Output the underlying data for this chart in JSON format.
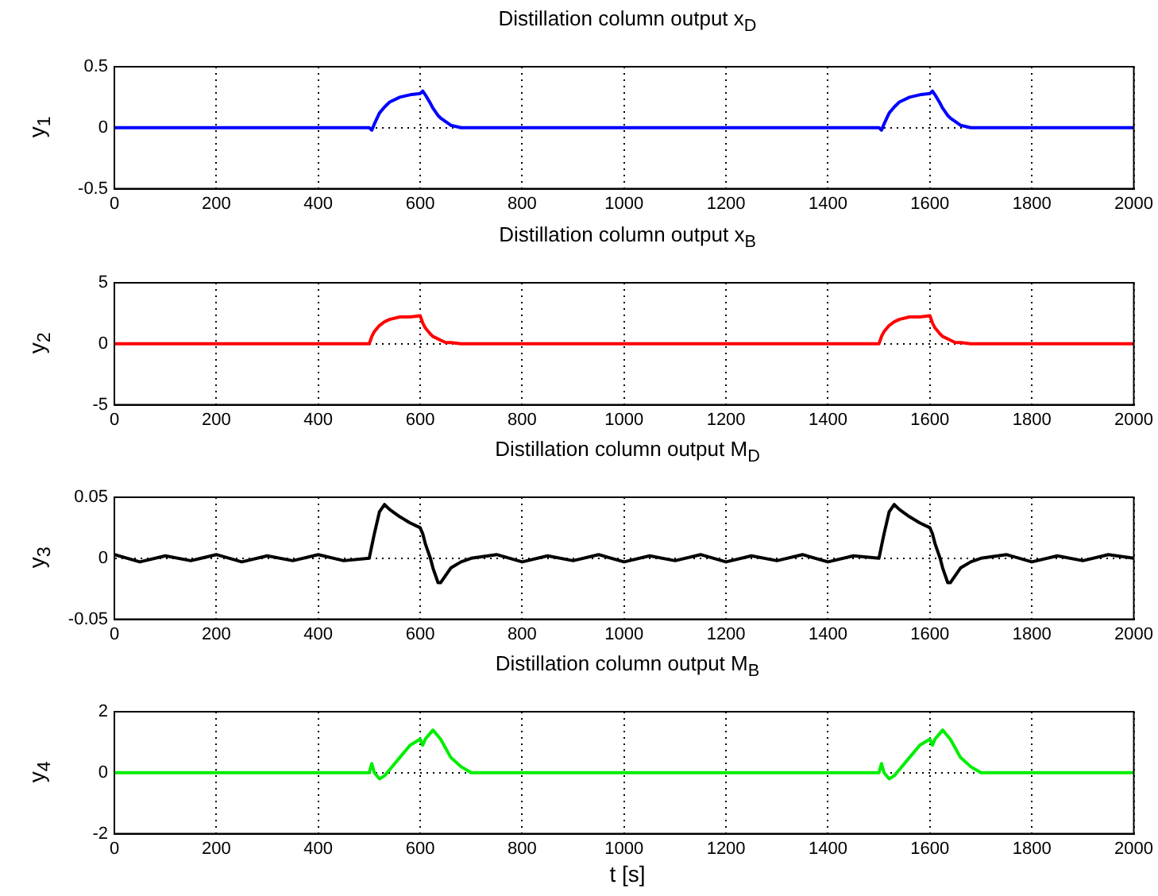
{
  "chart_data": [
    {
      "type": "line",
      "title": "Distillation column output x$_{D}$",
      "ylabel": "y$_{1}$",
      "grid": true,
      "xlim": [
        0,
        2000
      ],
      "xticks": [
        0,
        200,
        400,
        600,
        800,
        1000,
        1200,
        1400,
        1600,
        1800,
        2000
      ],
      "ylim": [
        -0.5,
        0.5
      ],
      "yticks": [
        -0.5,
        0,
        0.5
      ],
      "x": [
        0,
        50,
        100,
        150,
        200,
        250,
        300,
        350,
        400,
        450,
        500,
        505,
        510,
        520,
        530,
        540,
        560,
        580,
        600,
        605,
        610,
        620,
        625,
        635,
        640,
        650,
        660,
        680,
        700,
        750,
        800,
        850,
        900,
        950,
        1000,
        1050,
        1100,
        1150,
        1200,
        1250,
        1300,
        1350,
        1400,
        1450,
        1500,
        1505,
        1510,
        1520,
        1530,
        1540,
        1560,
        1580,
        1600,
        1605,
        1610,
        1620,
        1625,
        1635,
        1640,
        1650,
        1660,
        1680,
        1700,
        1750,
        1800,
        1850,
        1900,
        1950,
        2000
      ],
      "series": [
        {
          "color": "#0000ff",
          "values": [
            0,
            0,
            0,
            0,
            0,
            0,
            0,
            0,
            0,
            0,
            0,
            -0.02,
            0.03,
            0.12,
            0.17,
            0.21,
            0.25,
            0.27,
            0.28,
            0.3,
            0.27,
            0.2,
            0.16,
            0.1,
            0.08,
            0.05,
            0.02,
            0,
            0,
            0,
            0,
            0,
            0,
            0,
            0,
            0,
            0,
            0,
            0,
            0,
            0,
            0,
            0,
            0,
            0,
            -0.02,
            0.03,
            0.12,
            0.17,
            0.21,
            0.25,
            0.27,
            0.28,
            0.3,
            0.27,
            0.2,
            0.16,
            0.1,
            0.08,
            0.05,
            0.02,
            0,
            0,
            0,
            0,
            0,
            0,
            0,
            0
          ]
        }
      ]
    },
    {
      "type": "line",
      "title": "Distillation column output x$_{B}$",
      "ylabel": "y$_{2}$",
      "grid": true,
      "xlim": [
        0,
        2000
      ],
      "xticks": [
        0,
        200,
        400,
        600,
        800,
        1000,
        1200,
        1400,
        1600,
        1800,
        2000
      ],
      "ylim": [
        -5,
        5
      ],
      "yticks": [
        -5,
        0,
        5
      ],
      "x": [
        0,
        50,
        100,
        150,
        200,
        250,
        300,
        350,
        400,
        450,
        500,
        505,
        510,
        520,
        530,
        540,
        560,
        580,
        600,
        605,
        610,
        620,
        625,
        635,
        640,
        650,
        660,
        680,
        700,
        750,
        800,
        850,
        900,
        950,
        1000,
        1050,
        1100,
        1150,
        1200,
        1250,
        1300,
        1350,
        1400,
        1450,
        1500,
        1505,
        1510,
        1520,
        1530,
        1540,
        1560,
        1580,
        1600,
        1605,
        1610,
        1620,
        1625,
        1635,
        1640,
        1650,
        1660,
        1680,
        1700,
        1750,
        1800,
        1850,
        1900,
        1950,
        2000
      ],
      "series": [
        {
          "color": "#ff0000",
          "values": [
            0,
            0,
            0,
            0,
            0,
            0,
            0,
            0,
            0,
            0,
            0,
            0.6,
            1,
            1.5,
            1.8,
            2,
            2.2,
            2.2,
            2.3,
            1.7,
            1.3,
            0.8,
            0.6,
            0.4,
            0.3,
            0.1,
            0.1,
            0,
            0,
            0,
            0,
            0,
            0,
            0,
            0,
            0,
            0,
            0,
            0,
            0,
            0,
            0,
            0,
            0,
            0,
            0.6,
            1,
            1.5,
            1.8,
            2,
            2.2,
            2.2,
            2.3,
            1.7,
            1.3,
            0.8,
            0.6,
            0.4,
            0.3,
            0.1,
            0.1,
            0,
            0,
            0,
            0,
            0,
            0,
            0,
            0
          ]
        }
      ]
    },
    {
      "type": "line",
      "title": "Distillation column output M$_{D}$",
      "ylabel": "y$_{3}$",
      "grid": true,
      "xlim": [
        0,
        2000
      ],
      "xticks": [
        0,
        200,
        400,
        600,
        800,
        1000,
        1200,
        1400,
        1600,
        1800,
        2000
      ],
      "ylim": [
        -0.05,
        0.05
      ],
      "yticks": [
        -0.05,
        0,
        0.05
      ],
      "x": [
        0,
        50,
        100,
        150,
        200,
        250,
        300,
        350,
        400,
        450,
        500,
        505,
        510,
        520,
        530,
        540,
        560,
        580,
        600,
        605,
        610,
        620,
        625,
        635,
        640,
        650,
        660,
        680,
        700,
        750,
        800,
        850,
        900,
        950,
        1000,
        1050,
        1100,
        1150,
        1200,
        1250,
        1300,
        1350,
        1400,
        1450,
        1500,
        1505,
        1510,
        1520,
        1530,
        1540,
        1560,
        1580,
        1600,
        1605,
        1610,
        1620,
        1625,
        1635,
        1640,
        1650,
        1660,
        1680,
        1700,
        1750,
        1800,
        1850,
        1900,
        1950,
        2000
      ],
      "series": [
        {
          "color": "#000000",
          "values": [
            0.003,
            -0.003,
            0.002,
            -0.002,
            0.003,
            -0.003,
            0.002,
            -0.002,
            0.003,
            -0.002,
            0,
            0.01,
            0.02,
            0.038,
            0.044,
            0.04,
            0.034,
            0.029,
            0.025,
            0.02,
            0.012,
            0,
            -0.008,
            -0.02,
            -0.02,
            -0.014,
            -0.008,
            -0.003,
            0,
            0.003,
            -0.003,
            0.002,
            -0.002,
            0.003,
            -0.003,
            0.002,
            -0.002,
            0.003,
            -0.003,
            0.002,
            -0.002,
            0.003,
            -0.003,
            0.002,
            0,
            0.01,
            0.02,
            0.038,
            0.044,
            0.04,
            0.034,
            0.029,
            0.025,
            0.02,
            0.012,
            0,
            -0.008,
            -0.02,
            -0.02,
            -0.014,
            -0.008,
            -0.003,
            0,
            0.003,
            -0.003,
            0.002,
            -0.002,
            0.003,
            0
          ]
        }
      ]
    },
    {
      "type": "line",
      "title": "Distillation column output M$_{B}$",
      "ylabel": "y$_{4}$",
      "xlabel": "t [s]",
      "grid": true,
      "xlim": [
        0,
        2000
      ],
      "xticks": [
        0,
        200,
        400,
        600,
        800,
        1000,
        1200,
        1400,
        1600,
        1800,
        2000
      ],
      "ylim": [
        -2,
        2
      ],
      "yticks": [
        -2,
        0,
        2
      ],
      "x": [
        0,
        50,
        100,
        150,
        200,
        250,
        300,
        350,
        400,
        450,
        500,
        505,
        510,
        520,
        530,
        540,
        560,
        580,
        600,
        605,
        610,
        620,
        625,
        635,
        640,
        650,
        660,
        680,
        700,
        750,
        800,
        850,
        900,
        950,
        1000,
        1050,
        1100,
        1150,
        1200,
        1250,
        1300,
        1350,
        1400,
        1450,
        1500,
        1505,
        1510,
        1520,
        1530,
        1540,
        1560,
        1580,
        1600,
        1605,
        1610,
        1620,
        1625,
        1635,
        1640,
        1650,
        1660,
        1680,
        1700,
        1750,
        1800,
        1850,
        1900,
        1950,
        2000
      ],
      "series": [
        {
          "color": "#00ee00",
          "values": [
            0,
            0,
            0,
            0,
            0,
            0,
            0,
            0,
            0,
            0,
            0,
            0.3,
            0,
            -0.2,
            -0.1,
            0.1,
            0.5,
            0.9,
            1.1,
            0.9,
            1.1,
            1.3,
            1.4,
            1.2,
            1.1,
            0.8,
            0.5,
            0.2,
            0,
            0,
            0,
            0,
            0,
            0,
            0,
            0,
            0,
            0,
            0,
            0,
            0,
            0,
            0,
            0,
            0,
            0.3,
            0,
            -0.2,
            -0.1,
            0.1,
            0.5,
            0.9,
            1.1,
            0.9,
            1.1,
            1.3,
            1.4,
            1.2,
            1.1,
            0.8,
            0.5,
            0.2,
            0,
            0,
            0,
            0,
            0,
            0,
            0
          ]
        }
      ]
    }
  ]
}
